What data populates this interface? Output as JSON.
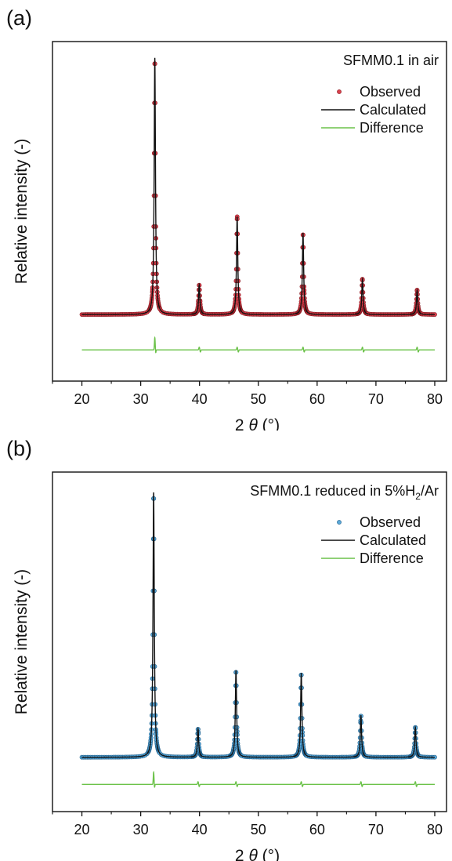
{
  "chart_data": [
    {
      "type": "line",
      "panel_label": "(a)",
      "title": "SFMM0.1 in air",
      "title_sub": "",
      "title_tail": "",
      "xlabel_prefix": "2 ",
      "xlabel_symbol": "θ",
      "xlabel_suffix": " (°)",
      "ylabel": "Relative intensity (-)",
      "xlim": [
        15,
        82
      ],
      "ylim": [
        0,
        1.25
      ],
      "xticks": [
        "20",
        "30",
        "40",
        "50",
        "60",
        "70",
        "80"
      ],
      "show_yticks": false,
      "grid": false,
      "legend_position": "top-right",
      "colors": {
        "observed": "#d9414d",
        "observed_edge": "#8b1a22",
        "calculated": "#111111",
        "difference": "#6cc24a"
      },
      "baseline": 0.245,
      "difference_offset": 0.13,
      "x_range": [
        20,
        80
      ],
      "peaks": [
        {
          "x": 32.4,
          "y": 1.19
        },
        {
          "x": 39.95,
          "y": 0.355
        },
        {
          "x": 46.4,
          "y": 0.605
        },
        {
          "x": 57.6,
          "y": 0.545
        },
        {
          "x": 67.7,
          "y": 0.375
        },
        {
          "x": 77.0,
          "y": 0.335
        }
      ],
      "series": [
        {
          "name": "Observed",
          "marker": "circle"
        },
        {
          "name": "Calculated",
          "marker": "line"
        },
        {
          "name": "Difference",
          "marker": "line"
        }
      ]
    },
    {
      "type": "line",
      "panel_label": "(b)",
      "title": "SFMM0.1 reduced in 5%H",
      "title_sub": "2",
      "title_tail": "/Ar",
      "xlabel_prefix": "2 ",
      "xlabel_symbol": "θ",
      "xlabel_suffix": " (°)",
      "ylabel": "Relative intensity (-)",
      "xlim": [
        15,
        82
      ],
      "ylim": [
        0,
        1.25
      ],
      "xticks": [
        "20",
        "30",
        "40",
        "50",
        "60",
        "70",
        "80"
      ],
      "show_yticks": false,
      "grid": false,
      "legend_position": "top-right",
      "colors": {
        "observed": "#5aa8d8",
        "observed_edge": "#1f5f8b",
        "calculated": "#111111",
        "difference": "#6cc24a"
      },
      "baseline": 0.2,
      "difference_offset": 0.1,
      "x_range": [
        20,
        80
      ],
      "peaks": [
        {
          "x": 32.2,
          "y": 1.175
        },
        {
          "x": 39.75,
          "y": 0.305
        },
        {
          "x": 46.2,
          "y": 0.52
        },
        {
          "x": 57.3,
          "y": 0.51
        },
        {
          "x": 67.45,
          "y": 0.355
        },
        {
          "x": 76.7,
          "y": 0.31
        }
      ],
      "series": [
        {
          "name": "Observed",
          "marker": "circle"
        },
        {
          "name": "Calculated",
          "marker": "line"
        },
        {
          "name": "Difference",
          "marker": "line"
        }
      ]
    }
  ]
}
